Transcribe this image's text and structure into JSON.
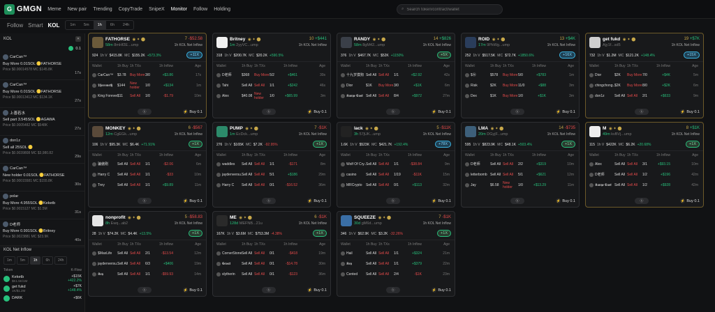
{
  "app": {
    "name": "GMGN"
  },
  "nav": [
    "Meme",
    "New pair",
    "Trending",
    "CopyTrade",
    "SnipeX",
    "Monitor",
    "Follow",
    "Holding"
  ],
  "search": {
    "placeholder": "Search token/contract/wallet"
  },
  "subtabs": [
    "Follow",
    "Smart",
    "KOL"
  ],
  "timeframes": [
    "1m",
    "5m",
    "1h",
    "6h",
    "24h"
  ],
  "left_panel": {
    "title": "KOL",
    "amount": "0.1",
    "items": [
      {
        "name": "CarCan™",
        "line2": "Buy More 0.01SOL 🪙FATHORSE",
        "line3": "Price $0.00014578 MC $145.8K",
        "time": "17s"
      },
      {
        "name": "CarCan™",
        "line2": "Buy More 0.01SOL 🪙FATHORSE",
        "line3": "Price $0.00013412 MC $134.1K",
        "time": "27s"
      },
      {
        "name": "上善若水",
        "line2": "Sell part 3.545SOL 🪙AGAWA",
        "line3": "Price $0.0005482 MC $548K",
        "time": "27s"
      },
      {
        "name": "don1z",
        "line2": "Sell all 25SOL 🪙",
        "line3": "Price $0.0039808 MC $3,980.82",
        "time": "29s"
      },
      {
        "name": "CarCan™",
        "line2": "New holder 0.01SOL 🪙FATHORSE",
        "line3": "Price $0.00015581 MC $155.8K",
        "time": "30s"
      },
      {
        "name": "polar",
        "line2": "Buy More 4.955SOL 🪙Keketb",
        "line3": "Price $0.0015127 MC $1.5M",
        "time": "31s"
      },
      {
        "name": "D老师",
        "line2": "Buy More 0.991SOL 🪙Britney",
        "line3": "Price $0.0023881 MC $23.9K",
        "time": "40s"
      }
    ]
  },
  "net_inflow": {
    "title": "KOL Net Inflow",
    "timeframes": [
      "1m",
      "5m",
      "1h",
      "6h",
      "24h"
    ],
    "columns": [
      "Token",
      "K-Flow"
    ],
    "rows": [
      {
        "name": "Keketb",
        "sub": "$K1.5K/1M",
        "val": "+$15K",
        "pct": "+422.2%"
      },
      {
        "name": "get fukd",
        "sub": "1K/$1.2M",
        "val": "+$7K",
        "pct": "+148.4%"
      },
      {
        "name": "DARK",
        "sub": "",
        "val": "+$6K",
        "pct": ""
      }
    ]
  },
  "cards": [
    {
      "name": "FATHORSE",
      "age": "58m",
      "addr": "8mHf2E...ump",
      "tx": "7",
      "net": "-$52.58",
      "net_sign": "neg",
      "net_label": "1h KOL Net Inflow",
      "holders": "924",
      "vol": "$415.8K",
      "mc": "$155.2K",
      "chg": "+573.3%",
      "chg_sign": "g",
      "buy": "+11X",
      "buy_style": "blue",
      "rows": [
        {
          "w": "CarCan™",
          "b": "$3.78",
          "s": "3/0",
          "i": "+$3.86",
          "ago": "17s",
          "tag": "Buy More",
          "sign": "g"
        },
        {
          "w": "𝕿𝖍𝖊𝖗𝖊𝖒𝖊𝖙𝖍",
          "b": "$144",
          "s": "1/0",
          "i": "+$134",
          "ago": "1m",
          "tag": "New holder",
          "sign": "g"
        },
        {
          "w": "King Forever",
          "b": "$11",
          "s": "1/0",
          "i": "-$1.79",
          "ago": "10m",
          "tag": "Sell All",
          "sign": "r"
        }
      ]
    },
    {
      "name": "Britney",
      "age": "1m",
      "addr": "2yyVC...ump",
      "tx": "10",
      "net": "+$441",
      "net_sign": "pos",
      "net_label": "1h KOL Net Inflow",
      "holders": "318",
      "vol": "$200.7K",
      "mc": "$20.2K",
      "chg": "+590.5%",
      "chg_sign": "g",
      "buy": "",
      "rows": [
        {
          "w": "D老师",
          "b": "$368",
          "s": "5/2",
          "i": "+$461",
          "ago": "30s",
          "tag": "Buy More",
          "sign": "g"
        },
        {
          "w": "Tahi",
          "b": "Sell All",
          "s": "1/1",
          "i": "+$242",
          "ago": "46s",
          "tag": "Sell All",
          "sign": "g"
        },
        {
          "w": "Alex",
          "b": "$40.08",
          "s": "1/0",
          "i": "+$65.99",
          "ago": "3m",
          "tag": "New holder",
          "sign": "g"
        }
      ]
    },
    {
      "name": "RANDY",
      "age": "58m",
      "addr": "8gM42...ump",
      "tx": "14",
      "net": "+$826",
      "net_sign": "pos",
      "net_label": "1h KOL Net Inflow",
      "holders": "376",
      "vol": "$467.7K",
      "mc": "$52K",
      "chg": "+1150%",
      "chg_sign": "g",
      "buy": "+5X",
      "buy_style": "",
      "rows": [
        {
          "w": "十九岁摸狗",
          "b": "Sell All",
          "s": "1/1",
          "i": "+$2.92",
          "ago": "42s",
          "tag": "Sell All",
          "sign": "g"
        },
        {
          "w": "Dior",
          "b": "$1K",
          "s": "3/0",
          "i": "+$1K",
          "ago": "6m",
          "tag": "Buy More",
          "sign": "g"
        },
        {
          "w": "𝕶𝖆𝖓𝖞𝖊 𝕰𝖆𝖘𝖙",
          "b": "Sell All",
          "s": "8/4",
          "i": "+$972",
          "ago": "27m",
          "tag": "Sell All",
          "sign": "g"
        }
      ]
    },
    {
      "name": "ROID",
      "age": "17m",
      "addr": "9PkWg...ump",
      "tx": "13",
      "net": "+$4K",
      "net_sign": "pos",
      "net_label": "1h KOL Net Inflow",
      "holders": "252",
      "vol": "$517.5K",
      "mc": "$72.7K",
      "chg": "+1850.6%",
      "chg_sign": "g",
      "buy": "+16X",
      "buy_style": "blue",
      "rows": [
        {
          "w": "$Ⓝ",
          "b": "$578",
          "s": "5/0",
          "i": "+$783",
          "ago": "1m",
          "tag": "Buy More",
          "sign": "g"
        },
        {
          "w": "Risk",
          "b": "$2K",
          "s": "11/0",
          "i": "+$88",
          "ago": "3m",
          "tag": "Buy More",
          "sign": "g"
        },
        {
          "w": "Dex",
          "b": "$1K",
          "s": "1/0",
          "i": "+$1K",
          "ago": "3m",
          "tag": "Buy More",
          "sign": "g"
        }
      ]
    },
    {
      "name": "get fukd",
      "age": "",
      "addr": "Ajy1f...sd5",
      "tx": "19",
      "net": "+$7K",
      "net_sign": "pos",
      "net_label": "1h KOL Net Inflow",
      "holders": "732",
      "vol": "$1.2M",
      "mc": "$121.2K",
      "chg": "+148.4%",
      "chg_sign": "g",
      "buy": "+15X",
      "buy_style": "blue",
      "rows": [
        {
          "w": "Dior",
          "b": "$2K",
          "s": "7/0",
          "i": "+$4K",
          "ago": "5m",
          "tag": "Buy More",
          "sign": "g"
        },
        {
          "w": "chingchong...",
          "b": "$2K",
          "s": "8/0",
          "i": "+$2K",
          "ago": "6m",
          "tag": "Buy More",
          "sign": "g"
        },
        {
          "w": "don1z",
          "b": "Sell All",
          "s": "2/1",
          "i": "+$633",
          "ago": "9m",
          "tag": "Sell All",
          "sign": "g"
        }
      ]
    },
    {
      "name": "MONKEY",
      "age": "12m",
      "addr": "CgEGk...ump",
      "tx": "6",
      "net": "-$567",
      "net_sign": "neg",
      "net_label": "1h KOL Net Inflow",
      "holders": "106",
      "vol": "$95.3K",
      "mc": "$6.4K",
      "chg": "+71.91%",
      "chg_sign": "g",
      "buy": "+1X",
      "buy_style": "",
      "rows": [
        {
          "w": "骗傲刚",
          "b": "Sell All",
          "s": "1/1",
          "i": "-$2.06",
          "ago": "6m",
          "tag": "Sell All",
          "sign": "r"
        },
        {
          "w": "Harry C",
          "b": "Sell All",
          "s": "1/1",
          "i": "-$33",
          "ago": "10m",
          "tag": "Sell All",
          "sign": "r"
        },
        {
          "w": "Trey",
          "b": "Sell All",
          "s": "1/1",
          "i": "+$9.89",
          "ago": "11m",
          "tag": "Sell All",
          "sign": "g"
        }
      ]
    },
    {
      "name": "PUMP",
      "age": "1m",
      "addr": "EcDck...ump",
      "tx": "7",
      "net": "-$1K",
      "net_sign": "neg",
      "net_label": "1h KOL Net Inflow",
      "holders": "276",
      "vol": "$165K",
      "mc": "$7.2K",
      "chg": "-92.95%",
      "chg_sign": "r",
      "buy": "+1X",
      "buy_style": "",
      "rows": [
        {
          "w": "waddles",
          "b": "Sell All",
          "s": "1/1",
          "i": "-$171",
          "ago": "8m",
          "tag": "Sell All",
          "sign": "r"
        },
        {
          "w": "jaydenversu...",
          "b": "Sell All",
          "s": "5/1",
          "i": "+$186",
          "ago": "29m",
          "tag": "Sell All",
          "sign": "g"
        },
        {
          "w": "Harry C",
          "b": "Sell All",
          "s": "0/1",
          "i": "-$16.52",
          "ago": "36m",
          "tag": "Sell All",
          "sign": "r"
        }
      ]
    },
    {
      "name": "lack",
      "age": "3h",
      "addr": "57jUK...ump",
      "tx": "5",
      "net": "-$11K",
      "net_sign": "neg",
      "net_label": "1h KOL Net Inflow",
      "holders": "1.6K",
      "vol": "$523K",
      "mc": "$421.7K",
      "chg": "+192.4%",
      "chg_sign": "g",
      "buy": "+78X",
      "buy_style": "blue",
      "rows": [
        {
          "w": "Wolf Of Cry...",
          "b": "Sell All",
          "s": "1/1",
          "i": "-$38.84",
          "ago": "9m",
          "tag": "Sell All",
          "sign": "r"
        },
        {
          "w": "casino",
          "b": "Sell All",
          "s": "1/19",
          "i": "-$11K",
          "ago": "15m",
          "tag": "Sell All",
          "sign": "r"
        },
        {
          "w": "MRCrypto",
          "b": "Sell All",
          "s": "0/1",
          "i": "+$113",
          "ago": "32m",
          "tag": "Sell All",
          "sign": "g"
        }
      ]
    },
    {
      "name": "LMA",
      "age": "20m",
      "addr": "DGyjF...ump",
      "tx": "14",
      "net": "-$735",
      "net_sign": "neg",
      "net_label": "1h KOL Net Inflow",
      "holders": "595",
      "vol": "$823.9K",
      "mc": "$48.1K",
      "chg": "+503.4%",
      "chg_sign": "g",
      "buy": "+1X",
      "buy_style": "",
      "rows": [
        {
          "w": "D老师",
          "b": "Sell All",
          "s": "2/2",
          "i": "+$319",
          "ago": "10m",
          "tag": "Sell All",
          "sign": "g"
        },
        {
          "w": "letterbomb",
          "b": "Sell All",
          "s": "5/1",
          "i": "+$621",
          "ago": "12m",
          "tag": "Sell All",
          "sign": "g"
        },
        {
          "w": "Jay",
          "b": "$6.58",
          "s": "1/0",
          "i": "+$13.29",
          "ago": "11m",
          "tag": "New holder",
          "sign": "g"
        }
      ]
    },
    {
      "name": "M",
      "age": "49m",
      "addr": "kvBVj...ump",
      "tx": "8",
      "net": "+$1K",
      "net_sign": "pos",
      "net_label": "1h KOL Net Inflow",
      "holders": "115",
      "vol": "$422K",
      "mc": "$6.2K",
      "chg": "+20.68%",
      "chg_sign": "g",
      "buy": "+1X",
      "buy_style": "",
      "rows": [
        {
          "w": "Alex",
          "b": "Sell All",
          "s": "3/1",
          "i": "+$93.15",
          "ago": "10m",
          "tag": "Sell All",
          "sign": "g"
        },
        {
          "w": "D老师",
          "b": "Sell All",
          "s": "1/2",
          "i": "+$196",
          "ago": "42m",
          "tag": "Sell All",
          "sign": "g"
        },
        {
          "w": "𝕶𝖆𝖓𝖞𝖊 𝕰𝖆𝖘𝖙",
          "b": "Sell All",
          "s": "1/2",
          "i": "+$928",
          "ago": "42m",
          "tag": "Sell All",
          "sign": "g"
        }
      ]
    },
    {
      "name": "nonprofit",
      "age": "8h",
      "addr": "Ewq...ab2",
      "tx": "5",
      "net": "-$58.83",
      "net_sign": "neg",
      "net_label": "1h KOL Net Inflow",
      "holders": "28",
      "vol": "$74.2K",
      "mc": "$4.4K",
      "chg": "+13.5%",
      "chg_sign": "g",
      "buy": "+1X",
      "buy_style": "",
      "rows": [
        {
          "w": "$MaxLife",
          "b": "Sell All",
          "s": "2/1",
          "i": "-$13.54",
          "ago": "12m",
          "tag": "Sell All",
          "sign": "r"
        },
        {
          "w": "jaydenversu...",
          "b": "Sell All",
          "s": "6/3",
          "i": "+$406",
          "ago": "19m",
          "tag": "Sell All",
          "sign": "g"
        },
        {
          "w": "𝕶𝖊𝖞",
          "b": "Sell All",
          "s": "1/1",
          "i": "-$59.93",
          "ago": "14m",
          "tag": "Sell All",
          "sign": "r"
        }
      ]
    },
    {
      "name": "ME",
      "age": "128d",
      "addr": "MEFNB...21u",
      "tx": "6",
      "net": "-$1K",
      "net_sign": "neg",
      "net_label": "1h KOL Net Inflow",
      "holders": "167K",
      "vol": "$3.6M",
      "mc": "$753.3M",
      "chg": "-4.38%",
      "chg_sign": "r",
      "buy": "+1X",
      "buy_style": "",
      "rows": [
        {
          "w": "CornerStone",
          "b": "Sell All",
          "s": "0/1",
          "i": "-$418",
          "ago": "19m",
          "tag": "Sell All",
          "sign": "r"
        },
        {
          "w": "𝕲𝖗𝖔𝖆𝖙",
          "b": "Sell All",
          "s": "0/1",
          "i": "-$14.78",
          "ago": "30m",
          "tag": "Sell All",
          "sign": "r"
        },
        {
          "w": "slytherin",
          "b": "Sell All",
          "s": "0/1",
          "i": "-$123",
          "ago": "36m",
          "tag": "Sell All",
          "sign": "r"
        }
      ]
    },
    {
      "name": "SQUEEZE",
      "age": "30d",
      "addr": "gM6d...ump",
      "tx": "7",
      "net": "-$1K",
      "net_sign": "neg",
      "net_label": "1h KOL Net Inflow",
      "holders": "346",
      "vol": "$62.9K",
      "mc": "$3.2K",
      "chg": "-32.26%",
      "chg_sign": "r",
      "buy": "+1X",
      "buy_style": "",
      "rows": [
        {
          "w": "Hail",
          "b": "Sell All",
          "s": "1/1",
          "i": "+$324",
          "ago": "21m",
          "tag": "Sell All",
          "sign": "g"
        },
        {
          "w": "𝕶𝖊𝖞",
          "b": "Sell All",
          "s": "1/1",
          "i": "+$379",
          "ago": "22m",
          "tag": "Sell All",
          "sign": "g"
        },
        {
          "w": "Cented",
          "b": "Sell All",
          "s": "2/4",
          "i": "-$1K",
          "ago": "23m",
          "tag": "Sell All",
          "sign": "r"
        }
      ]
    }
  ],
  "card_labels": {
    "wallet": "Wallet",
    "buy": "1h Buy",
    "sell": "1h TXs",
    "tx": "",
    "inflow": "1h Inflow",
    "age": "Age",
    "buy_btn": "Buy 0.1"
  }
}
